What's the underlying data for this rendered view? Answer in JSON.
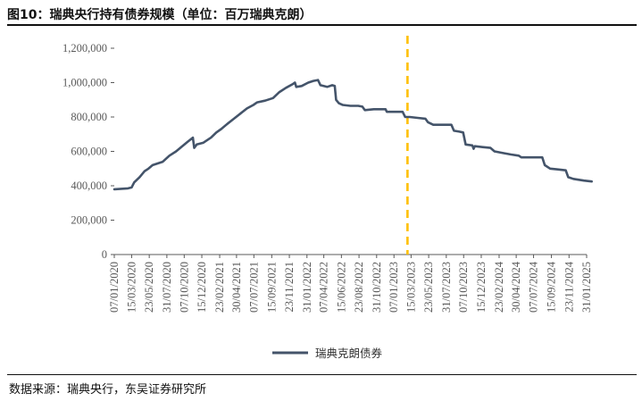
{
  "header": {
    "title": "图10：瑞典央行持有债券规模（单位：百万瑞典克朗）"
  },
  "footer": {
    "source": "数据来源：瑞典央行，东吴证券研究所"
  },
  "colors": {
    "series": "#44546A",
    "marker_line": "#FFC000",
    "axis": "#595959"
  },
  "chart_data": {
    "type": "line",
    "title": "",
    "xlabel": "",
    "ylabel": "",
    "ylim": [
      0,
      1200000
    ],
    "yticks": [
      "0",
      "200,000",
      "400,000",
      "600,000",
      "800,000",
      "1,000,000",
      "1,200,000"
    ],
    "xticks": [
      "07/01/2020",
      "15/03/2020",
      "23/05/2020",
      "31/07/2020",
      "07/10/2020",
      "15/12/2020",
      "23/02/2021",
      "30/04/2021",
      "07/07/2021",
      "15/09/2021",
      "23/11/2021",
      "31/01/2022",
      "07/04/2022",
      "15/06/2022",
      "23/08/2022",
      "31/10/2022",
      "07/01/2023",
      "15/03/2023",
      "23/05/2023",
      "31/07/2023",
      "07/10/2023",
      "15/12/2023",
      "23/02/2024",
      "30/04/2024",
      "07/07/2024",
      "15/09/2024",
      "23/11/2024",
      "31/01/2025"
    ],
    "legend": "bottom-center",
    "grid": false,
    "vertical_marker": {
      "x": "01/03/2023",
      "style": "dashed"
    },
    "series": [
      {
        "name": "瑞典克朗债券",
        "points": [
          [
            "2020-01-07",
            380000
          ],
          [
            "2020-03-01",
            385000
          ],
          [
            "2020-03-15",
            390000
          ],
          [
            "2020-03-25",
            420000
          ],
          [
            "2020-04-15",
            450000
          ],
          [
            "2020-05-05",
            485000
          ],
          [
            "2020-05-20",
            500000
          ],
          [
            "2020-06-05",
            520000
          ],
          [
            "2020-06-25",
            530000
          ],
          [
            "2020-07-15",
            540000
          ],
          [
            "2020-08-10",
            575000
          ],
          [
            "2020-09-05",
            600000
          ],
          [
            "2020-09-25",
            625000
          ],
          [
            "2020-10-20",
            655000
          ],
          [
            "2020-11-10",
            680000
          ],
          [
            "2020-11-15",
            620000
          ],
          [
            "2020-11-25",
            640000
          ],
          [
            "2020-12-20",
            650000
          ],
          [
            "2021-01-20",
            680000
          ],
          [
            "2021-02-10",
            710000
          ],
          [
            "2021-03-01",
            730000
          ],
          [
            "2021-03-25",
            760000
          ],
          [
            "2021-04-20",
            790000
          ],
          [
            "2021-05-15",
            820000
          ],
          [
            "2021-06-10",
            850000
          ],
          [
            "2021-07-05",
            870000
          ],
          [
            "2021-07-20",
            885000
          ],
          [
            "2021-08-20",
            895000
          ],
          [
            "2021-09-20",
            910000
          ],
          [
            "2021-10-15",
            945000
          ],
          [
            "2021-11-10",
            970000
          ],
          [
            "2021-12-05",
            990000
          ],
          [
            "2021-12-15",
            1000000
          ],
          [
            "2021-12-20",
            975000
          ],
          [
            "2022-01-10",
            980000
          ],
          [
            "2022-02-05",
            1000000
          ],
          [
            "2022-02-25",
            1010000
          ],
          [
            "2022-03-15",
            1015000
          ],
          [
            "2022-03-25",
            985000
          ],
          [
            "2022-04-20",
            975000
          ],
          [
            "2022-05-10",
            985000
          ],
          [
            "2022-05-20",
            980000
          ],
          [
            "2022-05-25",
            900000
          ],
          [
            "2022-06-05",
            880000
          ],
          [
            "2022-06-20",
            870000
          ],
          [
            "2022-07-20",
            865000
          ],
          [
            "2022-08-20",
            865000
          ],
          [
            "2022-09-05",
            860000
          ],
          [
            "2022-09-15",
            840000
          ],
          [
            "2022-10-20",
            845000
          ],
          [
            "2022-11-20",
            845000
          ],
          [
            "2022-12-05",
            845000
          ],
          [
            "2022-12-10",
            830000
          ],
          [
            "2023-01-10",
            830000
          ],
          [
            "2023-02-10",
            830000
          ],
          [
            "2023-02-20",
            800000
          ],
          [
            "2023-03-10",
            800000
          ],
          [
            "2023-04-10",
            795000
          ],
          [
            "2023-05-10",
            790000
          ],
          [
            "2023-05-20",
            770000
          ],
          [
            "2023-06-10",
            755000
          ],
          [
            "2023-07-10",
            755000
          ],
          [
            "2023-08-20",
            755000
          ],
          [
            "2023-08-30",
            720000
          ],
          [
            "2023-09-20",
            715000
          ],
          [
            "2023-10-05",
            710000
          ],
          [
            "2023-10-15",
            640000
          ],
          [
            "2023-11-10",
            635000
          ],
          [
            "2023-11-15",
            615000
          ],
          [
            "2023-11-20",
            630000
          ],
          [
            "2023-12-20",
            625000
          ],
          [
            "2024-01-20",
            620000
          ],
          [
            "2024-02-05",
            600000
          ],
          [
            "2024-03-10",
            590000
          ],
          [
            "2024-04-10",
            582000
          ],
          [
            "2024-05-10",
            575000
          ],
          [
            "2024-05-20",
            565000
          ],
          [
            "2024-06-20",
            565000
          ],
          [
            "2024-07-20",
            565000
          ],
          [
            "2024-08-10",
            565000
          ],
          [
            "2024-08-20",
            520000
          ],
          [
            "2024-09-10",
            500000
          ],
          [
            "2024-10-10",
            495000
          ],
          [
            "2024-11-10",
            490000
          ],
          [
            "2024-11-20",
            450000
          ],
          [
            "2024-12-10",
            440000
          ],
          [
            "2025-01-20",
            430000
          ],
          [
            "2025-02-20",
            425000
          ]
        ]
      }
    ]
  }
}
